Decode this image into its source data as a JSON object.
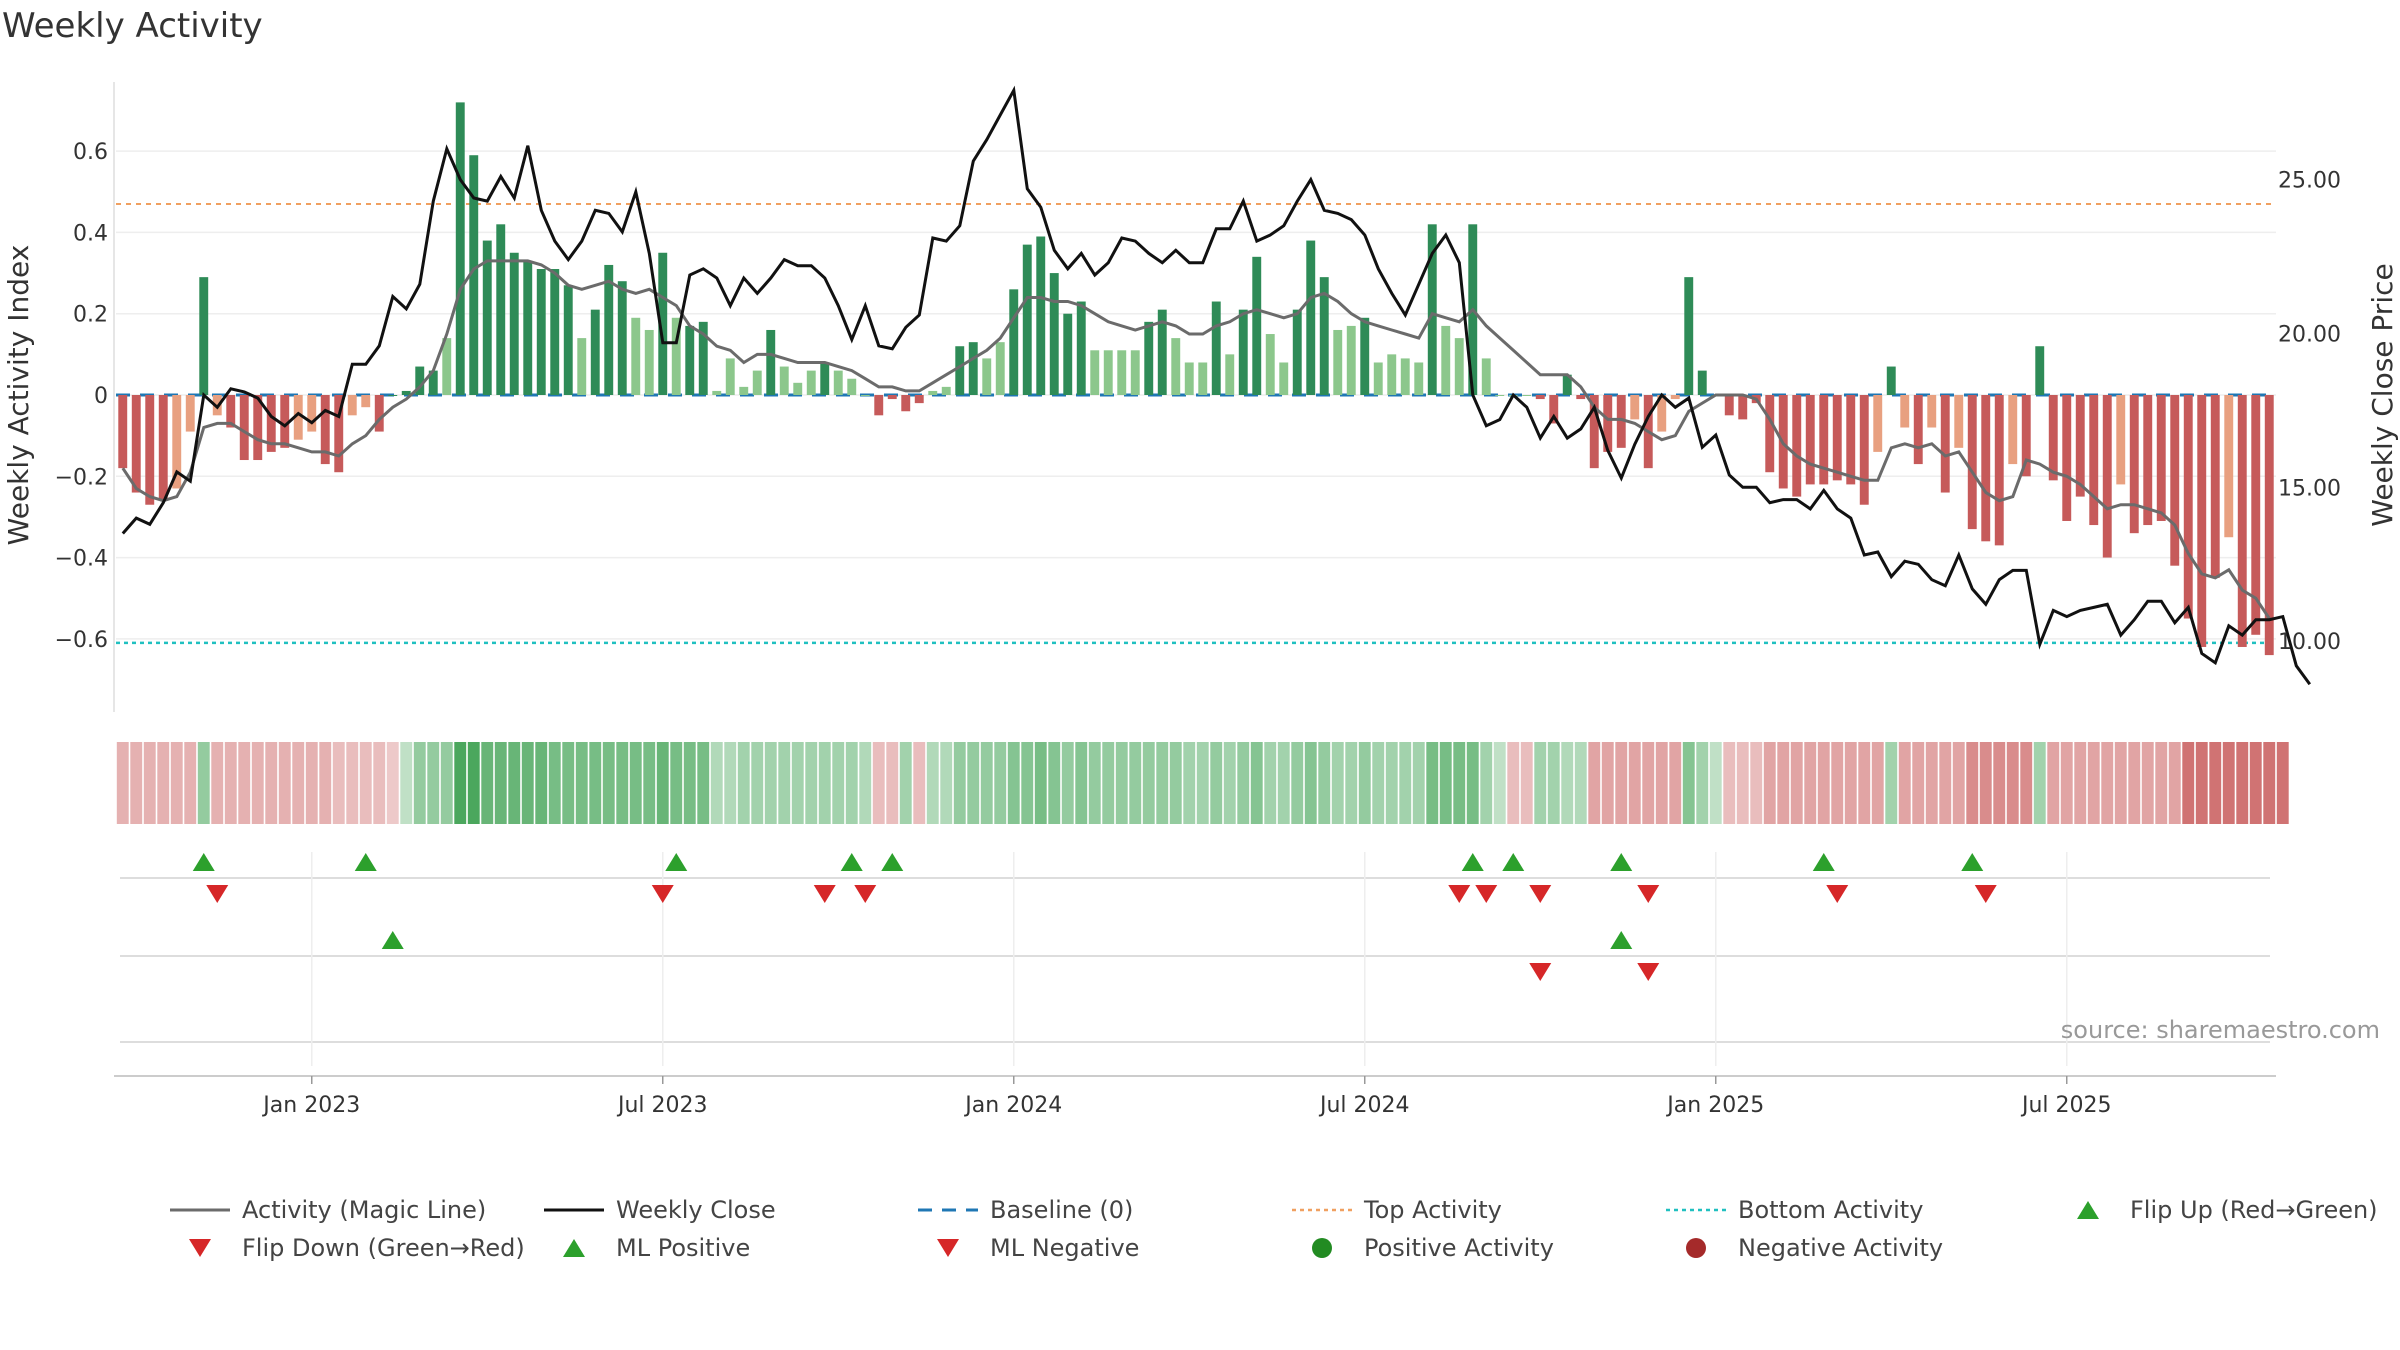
{
  "title": "Weekly Activity",
  "source": "source: sharemaestro.com",
  "colors": {
    "green_dark": "#2e8b57",
    "green_light": "#8cc78c",
    "red_dark": "#c65a5a",
    "red_light": "#e8a080",
    "top_line": "#f0a060",
    "bottom_line": "#20c0c0",
    "baseline": "#1f77b4",
    "magic": "#6b6b6b",
    "close": "#111111",
    "flip_up": "#2ca02c",
    "flip_down": "#d62728"
  },
  "chart_data": {
    "type": "bar",
    "title": "Weekly Activity",
    "ylabel": "Weekly Activity Index",
    "y2label": "Weekly Close Price",
    "ylim": [
      -0.78,
      0.78
    ],
    "y2lim": [
      7.7,
      28.3
    ],
    "yticks": [
      0.6,
      0.4,
      0.2,
      0,
      -0.2,
      -0.4,
      -0.6
    ],
    "ytick_labels": [
      "0.6",
      "0.4",
      "0.2",
      "0",
      "−0.2",
      "−0.4",
      "−0.6"
    ],
    "y2ticks": [
      25,
      20,
      15,
      10
    ],
    "y2tick_labels": [
      "25.00",
      "20.00",
      "15.00",
      "10.00"
    ],
    "top_activity": 0.47,
    "bottom_activity": -0.61,
    "xticks": [
      {
        "week": 14.5,
        "label": "Jan 2023"
      },
      {
        "week": 40.5,
        "label": "Jul 2023"
      },
      {
        "week": 66.5,
        "label": "Jan 2024"
      },
      {
        "week": 92.5,
        "label": "Jul 2024"
      },
      {
        "week": 118.5,
        "label": "Jan 2025"
      },
      {
        "week": 144.5,
        "label": "Jul 2025"
      }
    ],
    "activity": [
      -0.18,
      -0.24,
      -0.27,
      -0.26,
      -0.23,
      -0.09,
      0.29,
      -0.05,
      -0.08,
      -0.16,
      -0.16,
      -0.14,
      -0.13,
      -0.11,
      -0.09,
      -0.17,
      -0.19,
      -0.05,
      -0.03,
      -0.09,
      0.0,
      0.01,
      0.07,
      0.06,
      0.14,
      0.72,
      0.59,
      0.38,
      0.42,
      0.35,
      0.33,
      0.31,
      0.31,
      0.27,
      0.14,
      0.21,
      0.32,
      0.28,
      0.19,
      0.16,
      0.35,
      0.19,
      0.17,
      0.18,
      0.01,
      0.09,
      0.02,
      0.06,
      0.16,
      0.07,
      0.03,
      0.06,
      0.08,
      0.06,
      0.04,
      0.0,
      -0.05,
      -0.01,
      -0.04,
      -0.02,
      0.01,
      0.02,
      0.12,
      0.13,
      0.09,
      0.13,
      0.26,
      0.37,
      0.39,
      0.3,
      0.2,
      0.23,
      0.11,
      0.11,
      0.11,
      0.11,
      0.18,
      0.21,
      0.14,
      0.08,
      0.08,
      0.23,
      0.1,
      0.21,
      0.34,
      0.15,
      0.08,
      0.21,
      0.38,
      0.29,
      0.16,
      0.17,
      0.19,
      0.08,
      0.1,
      0.09,
      0.08,
      0.42,
      0.17,
      0.14,
      0.42,
      0.09,
      0.0,
      0.0,
      0.0,
      -0.01,
      -0.07,
      0.05,
      -0.01,
      -0.18,
      -0.14,
      -0.13,
      -0.06,
      -0.18,
      -0.09,
      -0.01,
      0.29,
      0.06,
      0.0,
      -0.05,
      -0.06,
      -0.02,
      -0.19,
      -0.23,
      -0.25,
      -0.22,
      -0.22,
      -0.21,
      -0.22,
      -0.27,
      -0.14,
      0.07,
      -0.08,
      -0.17,
      -0.08,
      -0.24,
      -0.13,
      -0.33,
      -0.36,
      -0.37,
      -0.17,
      -0.2,
      0.12,
      -0.21,
      -0.31,
      -0.25,
      -0.32,
      -0.4,
      -0.22,
      -0.34,
      -0.32,
      -0.31,
      -0.42,
      -0.55,
      -0.62,
      -0.45,
      -0.35,
      -0.62,
      -0.59,
      -0.64
    ],
    "magic_line": [
      -0.18,
      -0.23,
      -0.25,
      -0.26,
      -0.25,
      -0.19,
      -0.08,
      -0.07,
      -0.07,
      -0.09,
      -0.11,
      -0.12,
      -0.12,
      -0.13,
      -0.14,
      -0.14,
      -0.15,
      -0.12,
      -0.1,
      -0.06,
      -0.03,
      -0.01,
      0.02,
      0.06,
      0.15,
      0.26,
      0.31,
      0.33,
      0.33,
      0.33,
      0.33,
      0.32,
      0.3,
      0.27,
      0.26,
      0.27,
      0.28,
      0.26,
      0.25,
      0.26,
      0.24,
      0.22,
      0.17,
      0.15,
      0.12,
      0.11,
      0.08,
      0.1,
      0.1,
      0.09,
      0.08,
      0.08,
      0.08,
      0.07,
      0.06,
      0.04,
      0.02,
      0.02,
      0.01,
      0.01,
      0.03,
      0.05,
      0.07,
      0.09,
      0.11,
      0.14,
      0.19,
      0.24,
      0.24,
      0.23,
      0.23,
      0.22,
      0.2,
      0.18,
      0.17,
      0.16,
      0.17,
      0.18,
      0.17,
      0.15,
      0.15,
      0.17,
      0.18,
      0.2,
      0.21,
      0.2,
      0.19,
      0.2,
      0.24,
      0.25,
      0.23,
      0.2,
      0.18,
      0.17,
      0.16,
      0.15,
      0.14,
      0.2,
      0.19,
      0.18,
      0.21,
      0.17,
      0.14,
      0.11,
      0.08,
      0.05,
      0.05,
      0.05,
      0.02,
      -0.03,
      -0.06,
      -0.06,
      -0.07,
      -0.09,
      -0.11,
      -0.1,
      -0.04,
      -0.02,
      0.0,
      0.0,
      0.0,
      -0.01,
      -0.06,
      -0.12,
      -0.15,
      -0.17,
      -0.18,
      -0.19,
      -0.2,
      -0.21,
      -0.21,
      -0.13,
      -0.12,
      -0.13,
      -0.12,
      -0.15,
      -0.14,
      -0.19,
      -0.24,
      -0.26,
      -0.25,
      -0.16,
      -0.17,
      -0.19,
      -0.2,
      -0.22,
      -0.25,
      -0.28,
      -0.27,
      -0.27,
      -0.28,
      -0.29,
      -0.32,
      -0.39,
      -0.44,
      -0.45,
      -0.43,
      -0.48,
      -0.5,
      -0.55
    ],
    "weekly_close": [
      13.5,
      14.0,
      13.8,
      14.5,
      15.5,
      15.2,
      18.0,
      17.6,
      18.2,
      18.1,
      17.9,
      17.3,
      17.0,
      17.4,
      17.1,
      17.5,
      17.3,
      19.0,
      19.0,
      19.6,
      21.2,
      20.8,
      21.6,
      24.3,
      26.0,
      25.0,
      24.4,
      24.3,
      25.1,
      24.4,
      26.1,
      24.0,
      23.0,
      22.4,
      23.0,
      24.0,
      23.9,
      23.3,
      24.6,
      22.6,
      19.7,
      19.7,
      21.9,
      22.1,
      21.8,
      20.9,
      21.8,
      21.3,
      21.8,
      22.4,
      22.2,
      22.2,
      21.8,
      20.9,
      19.8,
      20.9,
      19.6,
      19.5,
      20.2,
      20.6,
      23.1,
      23.0,
      23.5,
      25.6,
      26.3,
      27.1,
      27.9,
      24.7,
      24.1,
      22.7,
      22.1,
      22.6,
      21.9,
      22.3,
      23.1,
      23.0,
      22.6,
      22.3,
      22.7,
      22.3,
      22.3,
      23.4,
      23.4,
      24.3,
      23.0,
      23.2,
      23.5,
      24.3,
      25.0,
      24.0,
      23.9,
      23.7,
      23.2,
      22.1,
      21.3,
      20.6,
      21.6,
      22.6,
      23.2,
      22.3,
      18.0,
      17.0,
      17.2,
      18.0,
      17.6,
      16.6,
      17.3,
      16.6,
      16.9,
      17.6,
      16.2,
      15.3,
      16.4,
      17.3,
      18.0,
      17.6,
      17.9,
      16.3,
      16.7,
      15.4,
      15.0,
      15.0,
      14.5,
      14.6,
      14.6,
      14.3,
      14.9,
      14.3,
      14.0,
      12.8,
      12.9,
      12.1,
      12.6,
      12.5,
      12.0,
      11.8,
      12.8,
      11.7,
      11.2,
      12.0,
      12.3,
      12.3,
      9.9,
      11.0,
      10.8,
      11.0,
      11.1,
      11.2,
      10.2,
      10.7,
      11.3,
      11.3,
      10.6,
      11.1,
      9.6,
      9.3,
      10.5,
      10.2,
      10.7,
      10.7,
      10.8,
      9.2,
      8.6
    ],
    "heat_band": [
      -0.3,
      -0.3,
      -0.3,
      -0.3,
      -0.3,
      -0.3,
      0.4,
      -0.3,
      -0.3,
      -0.3,
      -0.3,
      -0.3,
      -0.3,
      -0.3,
      -0.3,
      -0.3,
      -0.2,
      -0.2,
      -0.2,
      -0.2,
      -0.1,
      0.1,
      0.4,
      0.4,
      0.4,
      0.9,
      0.9,
      0.7,
      0.7,
      0.7,
      0.7,
      0.7,
      0.6,
      0.6,
      0.6,
      0.6,
      0.6,
      0.6,
      0.6,
      0.6,
      0.7,
      0.6,
      0.6,
      0.6,
      0.2,
      0.2,
      0.3,
      0.3,
      0.3,
      0.3,
      0.3,
      0.3,
      0.3,
      0.3,
      0.3,
      0.2,
      -0.2,
      -0.2,
      0.3,
      -0.2,
      0.2,
      0.2,
      0.4,
      0.4,
      0.4,
      0.4,
      0.5,
      0.5,
      0.6,
      0.5,
      0.4,
      0.5,
      0.4,
      0.4,
      0.4,
      0.4,
      0.4,
      0.4,
      0.4,
      0.3,
      0.3,
      0.4,
      0.3,
      0.4,
      0.5,
      0.3,
      0.3,
      0.4,
      0.5,
      0.4,
      0.3,
      0.3,
      0.4,
      0.3,
      0.3,
      0.3,
      0.3,
      0.6,
      0.6,
      0.6,
      0.6,
      0.3,
      0.1,
      -0.2,
      -0.2,
      0.3,
      0.3,
      0.2,
      0.2,
      -0.4,
      -0.4,
      -0.4,
      -0.4,
      -0.4,
      -0.4,
      -0.4,
      0.5,
      0.3,
      0.1,
      -0.2,
      -0.2,
      -0.2,
      -0.4,
      -0.4,
      -0.4,
      -0.4,
      -0.4,
      -0.4,
      -0.4,
      -0.4,
      -0.4,
      0.3,
      -0.4,
      -0.4,
      -0.4,
      -0.4,
      -0.4,
      -0.6,
      -0.6,
      -0.6,
      -0.6,
      -0.6,
      0.3,
      -0.4,
      -0.4,
      -0.4,
      -0.4,
      -0.4,
      -0.4,
      -0.4,
      -0.4,
      -0.4,
      -0.4,
      -0.8,
      -0.8,
      -0.8,
      -0.8,
      -0.8,
      -0.8,
      -0.8,
      -0.8
    ],
    "flip_up": [
      6,
      18,
      41,
      54,
      57,
      100,
      103,
      111,
      126,
      137
    ],
    "flip_down": [
      7,
      40,
      52,
      55,
      99,
      101,
      105,
      113,
      127,
      138
    ],
    "ml_positive": [
      20,
      111
    ],
    "ml_negative": [
      105,
      113
    ],
    "legend": [
      {
        "label": "Activity (Magic Line)",
        "symbol": "line-gray"
      },
      {
        "label": "Weekly Close",
        "symbol": "line-black"
      },
      {
        "label": "Baseline (0)",
        "symbol": "dash-blue"
      },
      {
        "label": "Top Activity",
        "symbol": "dot-orange"
      },
      {
        "label": "Bottom Activity",
        "symbol": "dot-cyan"
      },
      {
        "label": "Flip Up (Red→Green)",
        "symbol": "triangle-up-green"
      },
      {
        "label": "Flip Down (Green→Red)",
        "symbol": "triangle-down-red"
      },
      {
        "label": "ML Positive",
        "symbol": "triangle-up-green"
      },
      {
        "label": "ML Negative",
        "symbol": "triangle-down-red"
      },
      {
        "label": "Positive Activity",
        "symbol": "circle-green"
      },
      {
        "label": "Negative Activity",
        "symbol": "circle-red"
      }
    ]
  }
}
